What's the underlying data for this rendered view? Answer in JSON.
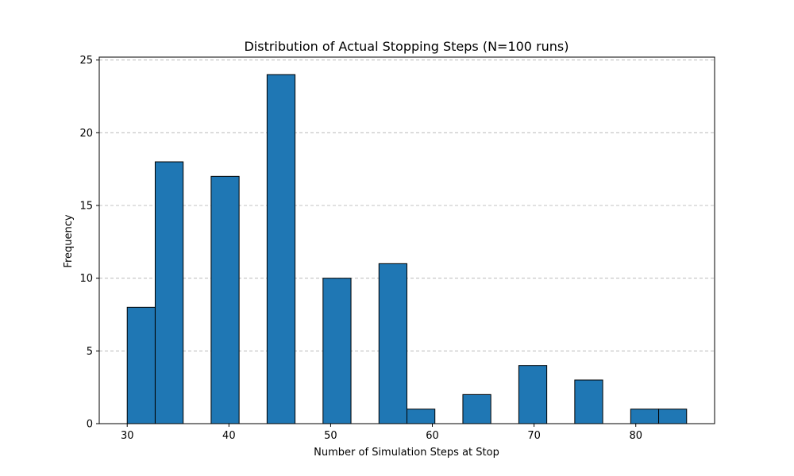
{
  "chart_data": {
    "type": "bar",
    "title": "Distribution of Actual Stopping Steps (N=100 runs)",
    "xlabel": "Number of Simulation Steps at Stop",
    "ylabel": "Frequency",
    "xlim": [
      27.25,
      87.75
    ],
    "ylim": [
      0,
      25.2
    ],
    "x_ticks": [
      30,
      40,
      50,
      60,
      70,
      80
    ],
    "y_ticks": [
      0,
      5,
      10,
      15,
      20,
      25
    ],
    "bar_color": "#1f77b4",
    "edge_color": "#000000",
    "grid": "y-dashed",
    "bins": [
      {
        "x0": 30.0,
        "x1": 32.75,
        "value": 8
      },
      {
        "x0": 32.75,
        "x1": 35.5,
        "value": 18
      },
      {
        "x0": 38.25,
        "x1": 41.0,
        "value": 17
      },
      {
        "x0": 43.75,
        "x1": 46.5,
        "value": 24
      },
      {
        "x0": 49.25,
        "x1": 52.0,
        "value": 10
      },
      {
        "x0": 54.75,
        "x1": 57.5,
        "value": 11
      },
      {
        "x0": 57.5,
        "x1": 60.25,
        "value": 1
      },
      {
        "x0": 63.0,
        "x1": 65.75,
        "value": 2
      },
      {
        "x0": 68.5,
        "x1": 71.25,
        "value": 4
      },
      {
        "x0": 74.0,
        "x1": 76.75,
        "value": 3
      },
      {
        "x0": 79.5,
        "x1": 82.25,
        "value": 1
      },
      {
        "x0": 82.25,
        "x1": 85.0,
        "value": 1
      }
    ]
  }
}
